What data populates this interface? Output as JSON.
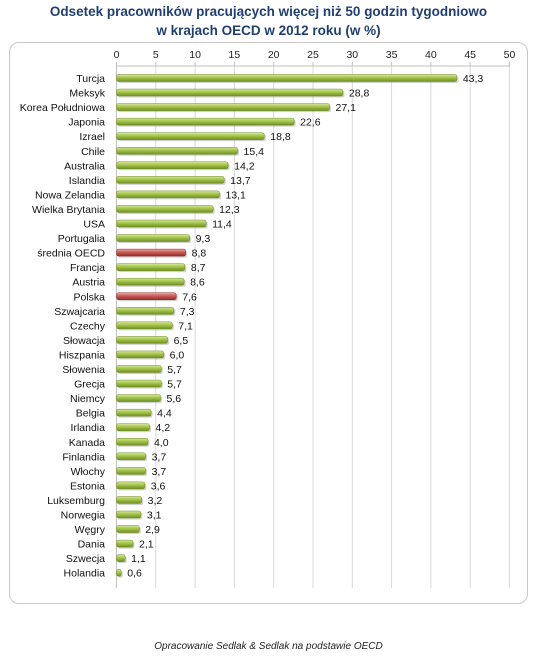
{
  "chart_data": {
    "type": "bar",
    "orientation": "horizontal",
    "title_lines": [
      "Odsetek pracowników pracujących więcej niż 50 godzin tygodniowo",
      "w krajach OECD w 2012  roku (w %)"
    ],
    "x_axis": {
      "min": 0,
      "max": 50,
      "step": 5,
      "position": "top",
      "ticks": [
        "0",
        "5",
        "10",
        "15",
        "20",
        "25",
        "30",
        "35",
        "40",
        "45",
        "50"
      ]
    },
    "grid": true,
    "categories": [
      "Turcja",
      "Meksyk",
      "Korea Południowa",
      "Japonia",
      "Izrael",
      "Chile",
      "Australia",
      "Islandia",
      "Nowa Zelandia",
      "Wielka Brytania",
      "USA",
      "Portugalia",
      "średnia OECD",
      "Francja",
      "Austria",
      "Polska",
      "Szwajcaria",
      "Czechy",
      "Słowacja",
      "Hiszpania",
      "Słowenia",
      "Grecja",
      "Niemcy",
      "Belgia",
      "Irlandia",
      "Kanada",
      "Finlandia",
      "Włochy",
      "Estonia",
      "Luksemburg",
      "Norwegia",
      "Węgry",
      "Dania",
      "Szwecja",
      "Holandia"
    ],
    "values": [
      43.3,
      28.8,
      27.1,
      22.6,
      18.8,
      15.4,
      14.2,
      13.7,
      13.1,
      12.3,
      11.4,
      9.3,
      8.8,
      8.7,
      8.6,
      7.6,
      7.3,
      7.1,
      6.5,
      6.0,
      5.7,
      5.7,
      5.6,
      4.4,
      4.2,
      4.0,
      3.7,
      3.7,
      3.6,
      3.2,
      3.1,
      2.9,
      2.1,
      1.1,
      0.6
    ],
    "value_labels": [
      "43,3",
      "28,8",
      "27,1",
      "22,6",
      "18,8",
      "15,4",
      "14,2",
      "13,7",
      "13,1",
      "12,3",
      "11,4",
      "9,3",
      "8,8",
      "8,7",
      "8,6",
      "7,6",
      "7,3",
      "7,1",
      "6,5",
      "6,0",
      "5,7",
      "5,7",
      "5,6",
      "4,4",
      "4,2",
      "4,0",
      "3,7",
      "3,7",
      "3,6",
      "3,2",
      "3,1",
      "2,9",
      "2,1",
      "1,1",
      "0,6"
    ],
    "highlighted": [
      "średnia OECD",
      "Polska"
    ],
    "colors": {
      "bar": "#9bbb3b",
      "bar_highlight": "#c0504d",
      "title": "#1f3f73",
      "grid": "#d9d9d9"
    }
  },
  "footer": {
    "source": "Opracowanie Sedlak & Sedlak na podstawie OECD"
  }
}
